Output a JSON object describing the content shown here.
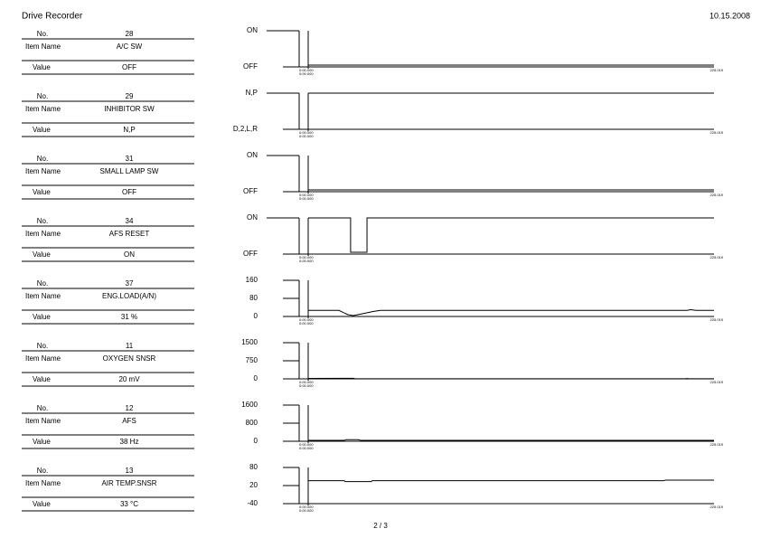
{
  "header": {
    "title": "Drive Recorder",
    "date": "10.15.2008"
  },
  "labels": {
    "no": "No.",
    "item_name": "Item Name",
    "value": "Value"
  },
  "panels": [
    {
      "no": "28",
      "item_name": "A/C SW",
      "value": "OFF",
      "chart": {
        "type": "line",
        "xlim": [
          0,
          225
        ],
        "ylim": [
          0,
          1
        ],
        "yticks": [
          {
            "value": 1,
            "label": "ON"
          },
          {
            "value": 0,
            "label": "OFF"
          }
        ],
        "x": [
          0,
          225
        ],
        "values": [
          0,
          0
        ],
        "x_start_label": "0:00.000",
        "x_end_label": "225.019"
      }
    },
    {
      "no": "29",
      "item_name": "INHIBITOR SW",
      "value": "N,P",
      "chart": {
        "type": "line",
        "xlim": [
          0,
          225
        ],
        "ylim": [
          0,
          1
        ],
        "yticks": [
          {
            "value": 1,
            "label": "N,P"
          },
          {
            "value": 0,
            "label": "D,2,L,R"
          }
        ],
        "x": [
          0,
          225
        ],
        "values": [
          1,
          1
        ],
        "x_start_label": "0:00.000",
        "x_end_label": "225.019"
      }
    },
    {
      "no": "31",
      "item_name": "SMALL LAMP SW",
      "value": "OFF",
      "chart": {
        "type": "line",
        "xlim": [
          0,
          225
        ],
        "ylim": [
          0,
          1
        ],
        "yticks": [
          {
            "value": 1,
            "label": "ON"
          },
          {
            "value": 0,
            "label": "OFF"
          }
        ],
        "x": [
          0,
          225
        ],
        "values": [
          0,
          0
        ],
        "x_start_label": "0:00.000",
        "x_end_label": "225.019"
      }
    },
    {
      "no": "34",
      "item_name": "AFS RESET",
      "value": "ON",
      "chart": {
        "type": "line",
        "xlim": [
          0,
          225
        ],
        "ylim": [
          0,
          1
        ],
        "yticks": [
          {
            "value": 1,
            "label": "ON"
          },
          {
            "value": 0,
            "label": "OFF"
          }
        ],
        "x": [
          0,
          23.5,
          23.5,
          32.6,
          32.6,
          225
        ],
        "values": [
          1,
          1,
          0,
          0,
          1,
          1
        ],
        "x_start_label": "0:00.000",
        "x_end_label": "225.019"
      }
    },
    {
      "no": "37",
      "item_name": "ENG.LOAD(A/N)",
      "value": "31 %",
      "chart": {
        "type": "line",
        "xlim": [
          0,
          225
        ],
        "ylim": [
          0,
          160
        ],
        "yticks": [
          160,
          80,
          0
        ],
        "x": [
          0,
          17,
          22,
          25,
          30,
          36,
          40,
          210,
          212,
          215,
          225
        ],
        "values": [
          27,
          27,
          8,
          4,
          12,
          22,
          27,
          27,
          30,
          27,
          27
        ],
        "x_start_label": "0:00.000",
        "x_end_label": "225.019"
      }
    },
    {
      "no": "11",
      "item_name": "OXYGEN SNSR",
      "value": "20 mV",
      "chart": {
        "type": "line",
        "xlim": [
          0,
          225
        ],
        "ylim": [
          0,
          1500
        ],
        "yticks": [
          1500,
          750,
          0
        ],
        "x": [
          0,
          25,
          26,
          209,
          210,
          211,
          225
        ],
        "values": [
          20,
          25,
          5,
          5,
          15,
          5,
          5
        ],
        "x_start_label": "0:00.000",
        "x_end_label": "225.019"
      }
    },
    {
      "no": "12",
      "item_name": "AFS",
      "value": "38 Hz",
      "chart": {
        "type": "line",
        "xlim": [
          0,
          225
        ],
        "ylim": [
          0,
          1600
        ],
        "yticks": [
          1600,
          800,
          0
        ],
        "x": [
          0,
          20,
          21,
          28,
          29,
          225
        ],
        "values": [
          38,
          38,
          70,
          70,
          38,
          38
        ],
        "x_start_label": "0:00.000",
        "x_end_label": "225.019"
      }
    },
    {
      "no": "13",
      "item_name": "AIR TEMP.SNSR",
      "value": "33 °C",
      "chart": {
        "type": "line",
        "xlim": [
          0,
          225
        ],
        "ylim": [
          -40,
          80
        ],
        "yticks": [
          80,
          20,
          -40
        ],
        "x": [
          0,
          20,
          20.5,
          35,
          35.5,
          197,
          198,
          225
        ],
        "values": [
          36,
          36,
          33,
          33,
          36,
          36,
          38,
          38
        ],
        "x_start_label": "0:00.000",
        "x_end_label": "225.019"
      }
    }
  ],
  "footer": "2 / 3"
}
